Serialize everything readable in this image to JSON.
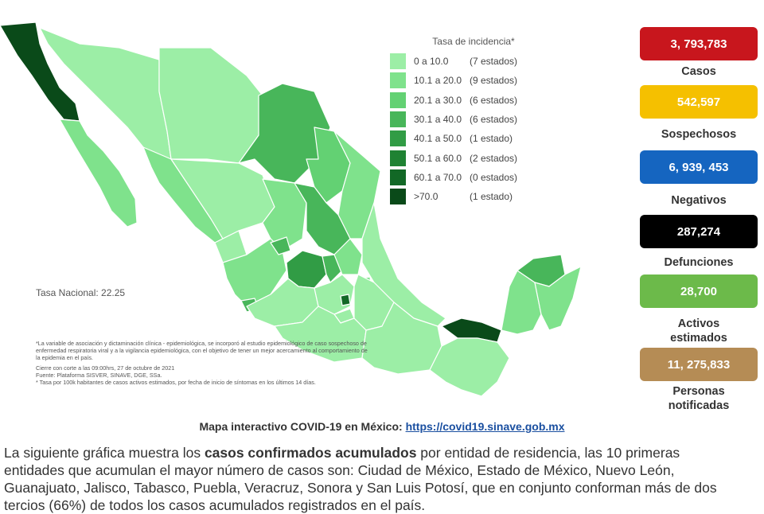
{
  "map": {
    "legend": {
      "title": "Tasa de incidencia*",
      "items": [
        {
          "range": "0  a  10.0",
          "count": "(7 estados)",
          "color": "#9ceea6"
        },
        {
          "range": "10.1 a  20.0",
          "count": "(9 estados)",
          "color": "#7fe28c"
        },
        {
          "range": "20.1 a  30.0",
          "count": "(6 estados)",
          "color": "#63d173"
        },
        {
          "range": "30.1 a  40.0",
          "count": "(6 estados)",
          "color": "#48b65a"
        },
        {
          "range": "40.1 a  50.0",
          "count": "(1 estado)",
          "color": "#319c45"
        },
        {
          "range": "50.1 a  60.0",
          "count": "(2 estados)",
          "color": "#1f8233"
        },
        {
          "range": "60.1 a  70.0",
          "count": "(0 estados)",
          "color": "#126826"
        },
        {
          "range": ">70.0",
          "count": "(1 estado)",
          "color": "#0a4a19"
        }
      ]
    },
    "tasa_nacional": "Tasa Nacional: 22.25",
    "notes": [
      "*La variable de asociación y dictaminación clínica - epidemiológica, se incorporó al estudio epidemiológico de caso sospechoso de enfermedad respiratoria viral y a la vigilancia epidemiológica, con el objetivo de tener un mejor acercamiento al comportamiento de la epidemia en el país.",
      "Cierre con corte a las 09:00hrs, 27 de octubre de 2021",
      "Fuente: Plataforma SISVER, SINAVE, DGE, SSa.",
      "* Tasa por 100k habitantes de casos activos estimados, por fecha de inicio de síntomas en los últimos 14 días."
    ]
  },
  "stats": [
    {
      "value": "3, 793,783",
      "label": "Casos",
      "color": "#c8161d"
    },
    {
      "value": "542,597",
      "label": "Sospechosos",
      "color": "#f5c000"
    },
    {
      "value": "6, 939, 453",
      "label": "Negativos",
      "color": "#1565c0"
    },
    {
      "value": "287,274",
      "label": "Defunciones",
      "color": "#000000"
    },
    {
      "value": "28,700",
      "label": "Activos estimados",
      "color": "#6cba4a"
    },
    {
      "value": "11, 275,833",
      "label": "Personas notificadas",
      "color": "#b58c55"
    }
  ],
  "caption": {
    "text": "Mapa interactivo COVID-19 en México: ",
    "link": "https://covid19.sinave.gob.mx"
  },
  "paragraph": {
    "line1_a": "La siguiente gráfica muestra los ",
    "line1_b": "casos confirmados acumulados",
    "line1_c": " por entidad de residencia, las 10 primeras",
    "line2": "entidades que acumulan el mayor número de casos son: Ciudad de México, Estado de México, Nuevo León,",
    "line3": "Guanajuato, Jalisco, Tabasco, Puebla, Veracruz, Sonora y San Luis Potosí, que en conjunto conforman más de dos",
    "line4": "tercios (66%) de todos los casos acumulados registrados en el país."
  }
}
